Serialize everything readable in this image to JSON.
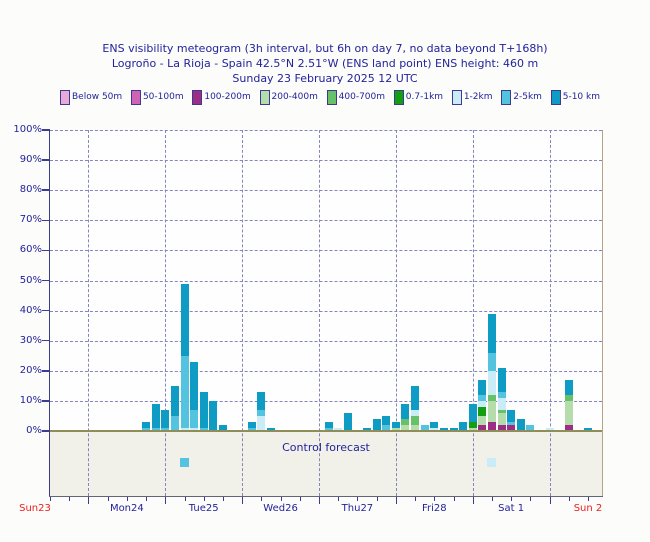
{
  "chart_data": {
    "type": "bar",
    "stacked": true,
    "title": "ENS visibility meteogram (3h interval, but 6h on day 7, no data beyond T+168h)",
    "subtitle": "Logroño - La Rioja - Spain 42.5°N 2.51°W (ENS land point) ENS height: 460 m",
    "date_line": "Sunday 23 February 2025 12 UTC",
    "y_axis": {
      "range": [
        0,
        100
      ],
      "tick_labels": [
        "0%",
        "10%",
        "20%",
        "30%",
        "40%",
        "50%",
        "60%",
        "70%",
        "80%",
        "90%",
        "100%"
      ],
      "gridlines": "dashed horizontal every 10%"
    },
    "x_axis": {
      "start": "Sunday 23 February 2025 12 UTC",
      "hours_span": 168,
      "bar_interval_hours": 3,
      "day7_interval_hours": 6,
      "minor_tick_hours": 6,
      "day_labels": [
        {
          "label": "Sun23",
          "hour": 0,
          "weekend": true
        },
        {
          "label": "Mon24",
          "hour": 24,
          "weekend": false
        },
        {
          "label": "Tue25",
          "hour": 48,
          "weekend": false
        },
        {
          "label": "Wed26",
          "hour": 72,
          "weekend": false
        },
        {
          "label": "Thu27",
          "hour": 96,
          "weekend": false
        },
        {
          "label": "Fri28",
          "hour": 120,
          "weekend": false
        },
        {
          "label": "Sat 1",
          "hour": 144,
          "weekend": false
        },
        {
          "label": "Sun 2",
          "hour": 168,
          "weekend": true
        }
      ]
    },
    "categories": [
      {
        "key": "below-50m",
        "label": "Below 50m",
        "color": "#e9a9d9"
      },
      {
        "key": "50-100m",
        "label": "50-100m",
        "color": "#cf63b4"
      },
      {
        "key": "100-200m",
        "label": "100-200m",
        "color": "#9e2d86"
      },
      {
        "key": "200-400m",
        "label": "200-400m",
        "color": "#b5dcab"
      },
      {
        "key": "400-700m",
        "label": "400-700m",
        "color": "#67c169"
      },
      {
        "key": "0.7-1km",
        "label": "0.7-1km",
        "color": "#12a012"
      },
      {
        "key": "1-2km",
        "label": "1-2km",
        "color": "#c9ecf7"
      },
      {
        "key": "2-5km",
        "label": "2-5km",
        "color": "#54c3e0"
      },
      {
        "key": "5-10km",
        "label": "5-10 km",
        "color": "#0f9cc4"
      }
    ],
    "bars": [
      {
        "time": "Mon 24 18UTC",
        "hour": 30,
        "segments": {
          "2-5km": 1,
          "5-10km": 2
        }
      },
      {
        "time": "Mon 24 21UTC",
        "hour": 33,
        "segments": {
          "2-5km": 1,
          "5-10km": 8
        }
      },
      {
        "time": "Tue 25 00UTC",
        "hour": 36,
        "segments": {
          "2-5km": 1,
          "5-10km": 6
        }
      },
      {
        "time": "Tue 25 03UTC",
        "hour": 39,
        "segments": {
          "2-5km": 5,
          "5-10km": 10
        }
      },
      {
        "time": "Tue 25 06UTC",
        "hour": 42,
        "segments": {
          "1-2km": 1,
          "2-5km": 24,
          "5-10km": 24
        }
      },
      {
        "time": "Tue 25 09UTC",
        "hour": 45,
        "segments": {
          "1-2km": 1,
          "2-5km": 6,
          "5-10km": 16
        }
      },
      {
        "time": "Tue 25 12UTC",
        "hour": 48,
        "segments": {
          "2-5km": 1,
          "5-10km": 12
        }
      },
      {
        "time": "Tue 25 15UTC",
        "hour": 51,
        "segments": {
          "5-10km": 10
        }
      },
      {
        "time": "Tue 25 18UTC",
        "hour": 54,
        "segments": {
          "5-10km": 2
        }
      },
      {
        "time": "Wed 26 03UTC",
        "hour": 63,
        "segments": {
          "2-5km": 1,
          "5-10km": 2
        }
      },
      {
        "time": "Wed 26 06UTC",
        "hour": 66,
        "segments": {
          "1-2km": 5,
          "2-5km": 2,
          "5-10km": 6
        }
      },
      {
        "time": "Wed 26 09UTC",
        "hour": 69,
        "segments": {
          "5-10km": 1
        }
      },
      {
        "time": "Thu 27 03UTC",
        "hour": 87,
        "segments": {
          "2-5km": 1,
          "5-10km": 2
        }
      },
      {
        "time": "Thu 27 06UTC",
        "hour": 90,
        "segments": {
          "1-2km": 1
        }
      },
      {
        "time": "Thu 27 09UTC",
        "hour": 93,
        "segments": {
          "5-10km": 6
        }
      },
      {
        "time": "Thu 27 15UTC",
        "hour": 99,
        "segments": {
          "5-10km": 1
        }
      },
      {
        "time": "Thu 27 18UTC",
        "hour": 102,
        "segments": {
          "5-10km": 4
        }
      },
      {
        "time": "Thu 27 21UTC",
        "hour": 105,
        "segments": {
          "2-5km": 2,
          "5-10km": 3
        }
      },
      {
        "time": "Fri 28 00UTC",
        "hour": 108,
        "segments": {
          "200-400m": 1,
          "5-10km": 2
        }
      },
      {
        "time": "Fri 28 03UTC",
        "hour": 111,
        "segments": {
          "200-400m": 2,
          "400-700m": 2,
          "5-10km": 5
        }
      },
      {
        "time": "Fri 28 06UTC",
        "hour": 114,
        "segments": {
          "200-400m": 2,
          "400-700m": 3,
          "1-2km": 2,
          "5-10km": 8
        }
      },
      {
        "time": "Fri 28 09UTC",
        "hour": 117,
        "segments": {
          "2-5km": 2
        }
      },
      {
        "time": "Fri 28 12UTC",
        "hour": 120,
        "segments": {
          "1-2km": 1,
          "5-10km": 2
        }
      },
      {
        "time": "Fri 28 15UTC",
        "hour": 123,
        "segments": {
          "5-10km": 1
        }
      },
      {
        "time": "Fri 28 18UTC",
        "hour": 126,
        "segments": {
          "5-10km": 1
        }
      },
      {
        "time": "Fri 28 21UTC",
        "hour": 129,
        "segments": {
          "5-10km": 3
        }
      },
      {
        "time": "Sat 1 00UTC",
        "hour": 132,
        "segments": {
          "200-400m": 1,
          "0.7-1km": 2,
          "5-10km": 6
        }
      },
      {
        "time": "Sat 1 03UTC",
        "hour": 135,
        "segments": {
          "100-200m": 2,
          "200-400m": 3,
          "0.7-1km": 3,
          "1-2km": 2,
          "2-5km": 2,
          "5-10km": 5
        }
      },
      {
        "time": "Sat 1 06UTC",
        "hour": 138,
        "segments": {
          "100-200m": 3,
          "200-400m": 7,
          "400-700m": 2,
          "1-2km": 8,
          "2-5km": 6,
          "5-10km": 13
        }
      },
      {
        "time": "Sat 1 09UTC",
        "hour": 141,
        "segments": {
          "100-200m": 2,
          "200-400m": 4,
          "400-700m": 1,
          "1-2km": 4,
          "2-5km": 2,
          "5-10km": 8
        }
      },
      {
        "time": "Sat 1 12UTC",
        "hour": 144,
        "segments": {
          "100-200m": 2,
          "2-5km": 1,
          "5-10km": 4
        }
      },
      {
        "time": "Sat 1 15UTC",
        "hour": 147,
        "segments": {
          "5-10km": 4
        }
      },
      {
        "time": "Sat 1 18UTC",
        "hour": 150,
        "segments": {
          "2-5km": 2
        }
      },
      {
        "time": "Sun 2 00UTC",
        "hour": 156,
        "segments": {
          "1-2km": 1
        }
      },
      {
        "time": "Sun 2 06UTC",
        "hour": 162,
        "segments": {
          "100-200m": 2,
          "200-400m": 8,
          "400-700m": 2,
          "5-10km": 5
        }
      },
      {
        "time": "Sun 2 12UTC",
        "hour": 168,
        "segments": {
          "5-10km": 1
        }
      }
    ],
    "control_forecast": {
      "label": "Control forecast",
      "markers": [
        {
          "time": "Tue 25 06UTC",
          "hour": 42,
          "key": "2-5km"
        },
        {
          "time": "Sat 1 06UTC",
          "hour": 138,
          "key": "1-2km"
        }
      ]
    },
    "colors": {
      "text": "#23239b",
      "weekend_label": "#ee2020",
      "axis": "#3b3b8f",
      "grid": "#8585bd",
      "zero_line": "#8f8e58",
      "strip_bg": "#f2f1e9",
      "frame_right": "#b3a484",
      "frame_bottom": "#63637a",
      "plot_bg": "#fefefe"
    }
  }
}
